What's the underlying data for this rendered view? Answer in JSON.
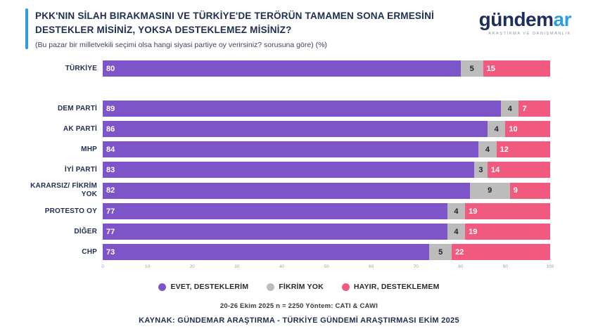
{
  "header": {
    "title_line1": "PKK'NIN SİLAH BIRAKMASINI VE TÜRKİYE'DE TERÖRÜN TAMAMEN SONA ERMESİNİ",
    "title_line2": "DESTEKLER MİSİNİZ, YOKSA DESTEKLEMEZ MİSİNİZ?",
    "subtitle": "(Bu pazar bir milletvekili seçimi olsa hangi siyasi partiye oy verirsiniz? sorusuna göre) (%)",
    "logo": {
      "part1": "gündem",
      "part2": "ar",
      "tagline": "ARAŞTIRMA VE DANIŞMANLIK"
    },
    "accent_color": "#2b9fe0"
  },
  "chart_data": {
    "type": "bar",
    "orientation": "horizontal",
    "stacked": true,
    "unit": "%",
    "categories": [
      "TÜRKİYE",
      "DEM PARTİ",
      "AK PARTİ",
      "MHP",
      "İYİ PARTİ",
      "KARARSIZ/ FİKRİM YOK",
      "PROTESTO OY",
      "DİĞER",
      "CHP"
    ],
    "series": [
      {
        "name": "EVET, DESTEKLERİM",
        "color": "#7d55c8",
        "values": [
          80,
          89,
          86,
          84,
          83,
          82,
          77,
          77,
          73
        ]
      },
      {
        "name": "FİKRİM YOK",
        "color": "#bcbcbc",
        "values": [
          5,
          4,
          4,
          4,
          3,
          9,
          4,
          4,
          5
        ]
      },
      {
        "name": "HAYIR, DESTEKLEMEM",
        "color": "#f2597e",
        "values": [
          15,
          7,
          10,
          12,
          14,
          9,
          19,
          19,
          22
        ]
      }
    ],
    "x_ticks": [
      0,
      10,
      20,
      30,
      40,
      50,
      60,
      70,
      80,
      90,
      100
    ],
    "xlim": [
      0,
      100
    ],
    "legend_position": "bottom",
    "grid": false
  },
  "footer": {
    "methodology": "20-26 Ekim 2025 n = 2250 Yöntem: CATI & CAWI",
    "source": "KAYNAK: GÜNDEMAR ARAŞTIRMA - TÜRKİYE GÜNDEMİ ARAŞTIRMASI EKİM 2025"
  }
}
